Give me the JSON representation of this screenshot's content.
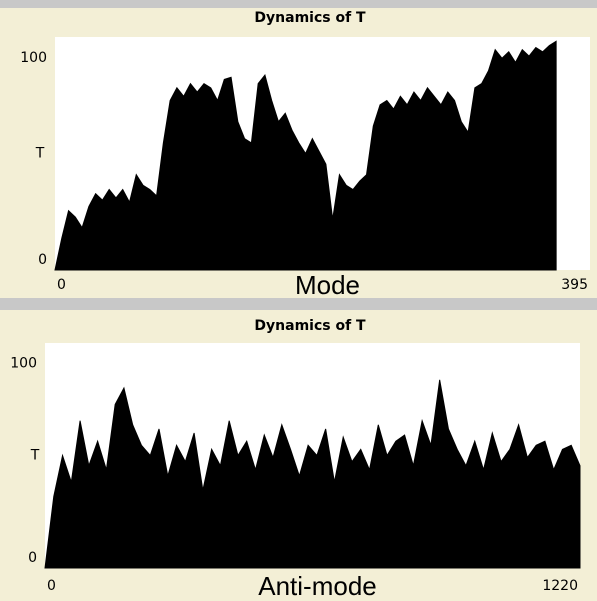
{
  "chart_data": [
    {
      "type": "area",
      "title": "Dynamics of T",
      "xlabel": "Mode",
      "ylabel": "T",
      "xlim": [
        0,
        395
      ],
      "xticks": [
        0,
        395
      ],
      "ylim": [
        0,
        110
      ],
      "yticks": [
        0,
        100
      ],
      "color": "#000000",
      "x": [
        0,
        5,
        10,
        15,
        20,
        25,
        30,
        35,
        40,
        45,
        50,
        55,
        60,
        65,
        70,
        75,
        80,
        85,
        90,
        95,
        100,
        105,
        110,
        115,
        120,
        125,
        130,
        135,
        140,
        145,
        150,
        155,
        160,
        165,
        170,
        175,
        180,
        185,
        190,
        195,
        200,
        205,
        210,
        215,
        220,
        225,
        230,
        235,
        240,
        245,
        250,
        255,
        260,
        265,
        270,
        275,
        280,
        285,
        290,
        295,
        300,
        305,
        310,
        315,
        320,
        325,
        330,
        335,
        340,
        345,
        350,
        355,
        360,
        365,
        370
      ],
      "values": [
        0,
        15,
        28,
        25,
        20,
        30,
        36,
        33,
        38,
        34,
        38,
        32,
        45,
        40,
        38,
        35,
        60,
        80,
        86,
        82,
        88,
        84,
        88,
        86,
        80,
        90,
        91,
        70,
        62,
        60,
        88,
        92,
        80,
        70,
        74,
        66,
        60,
        55,
        62,
        56,
        50,
        24,
        45,
        40,
        38,
        42,
        45,
        68,
        78,
        80,
        76,
        82,
        78,
        84,
        80,
        86,
        82,
        78,
        84,
        80,
        70,
        65,
        86,
        88,
        94,
        104,
        100,
        103,
        98,
        104,
        101,
        105,
        103,
        106,
        108
      ]
    },
    {
      "type": "area",
      "title": "Dynamics of T",
      "xlabel": "Anti-mode",
      "ylabel": "T",
      "xlim": [
        0,
        1220
      ],
      "xticks": [
        0,
        1220
      ],
      "ylim": [
        0,
        110
      ],
      "yticks": [
        0,
        100
      ],
      "color": "#000000",
      "x": [
        0,
        20,
        40,
        60,
        80,
        100,
        120,
        140,
        160,
        180,
        200,
        220,
        240,
        260,
        280,
        300,
        320,
        340,
        360,
        380,
        400,
        420,
        440,
        460,
        480,
        500,
        520,
        540,
        560,
        580,
        600,
        620,
        640,
        660,
        680,
        700,
        720,
        740,
        760,
        780,
        800,
        820,
        840,
        860,
        880,
        900,
        920,
        940,
        960,
        980,
        1000,
        1020,
        1040,
        1060,
        1080,
        1100,
        1120,
        1140,
        1160,
        1180,
        1200,
        1220
      ],
      "values": [
        0,
        35,
        55,
        42,
        72,
        50,
        62,
        48,
        80,
        88,
        70,
        60,
        55,
        68,
        45,
        60,
        52,
        66,
        38,
        58,
        50,
        72,
        55,
        62,
        48,
        65,
        54,
        70,
        58,
        45,
        60,
        55,
        68,
        42,
        64,
        52,
        58,
        48,
        70,
        55,
        62,
        65,
        50,
        72,
        60,
        92,
        68,
        58,
        50,
        62,
        48,
        66,
        52,
        58,
        70,
        54,
        60,
        62,
        48,
        58,
        60,
        50
      ]
    }
  ]
}
